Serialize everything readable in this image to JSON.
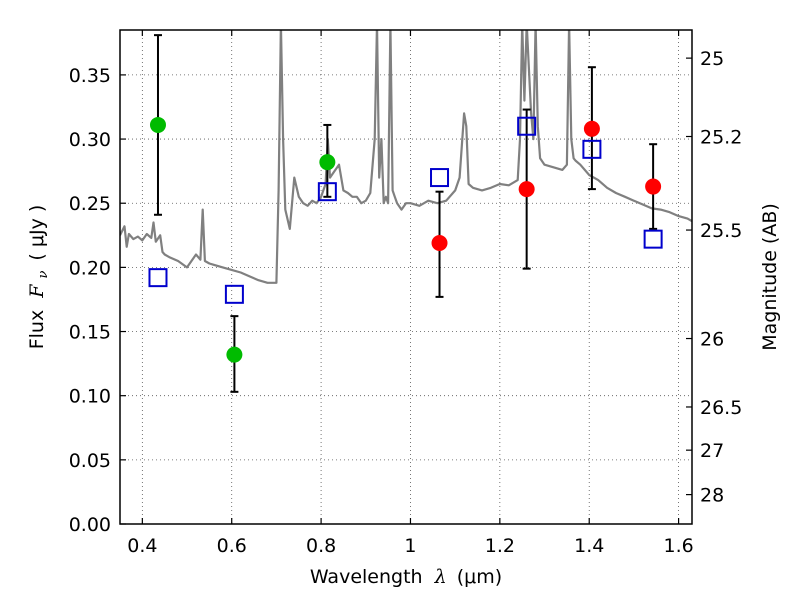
{
  "chart_data": {
    "type": "scatter",
    "title": "",
    "xlabel": {
      "text": "Wavelength",
      "symbol": "λ",
      "unit": "(μm)"
    },
    "ylabel": {
      "text": "Flux",
      "symbol": "F",
      "subscript": "ν",
      "unit": "( μJy )"
    },
    "ylabel_right": "Magnitude (AB)",
    "xlim": [
      0.35,
      1.63
    ],
    "ylim": [
      0.0,
      0.385
    ],
    "grid": true,
    "x_ticks": [
      {
        "value": 0.4,
        "label": "0.4"
      },
      {
        "value": 0.6,
        "label": "0.6"
      },
      {
        "value": 0.8,
        "label": "0.8"
      },
      {
        "value": 1.0,
        "label": "1"
      },
      {
        "value": 1.2,
        "label": "1.2"
      },
      {
        "value": 1.4,
        "label": "1.4"
      },
      {
        "value": 1.6,
        "label": "1.6"
      }
    ],
    "y_ticks": [
      {
        "value": 0.0,
        "label": "0.00"
      },
      {
        "value": 0.05,
        "label": "0.05"
      },
      {
        "value": 0.1,
        "label": "0.10"
      },
      {
        "value": 0.15,
        "label": "0.15"
      },
      {
        "value": 0.2,
        "label": "0.20"
      },
      {
        "value": 0.25,
        "label": "0.25"
      },
      {
        "value": 0.3,
        "label": "0.30"
      },
      {
        "value": 0.35,
        "label": "0.35"
      }
    ],
    "right_ticks": [
      {
        "value": 25.0,
        "label": "25"
      },
      {
        "value": 25.2,
        "label": "25.2"
      },
      {
        "value": 25.5,
        "label": "25.5"
      },
      {
        "value": 26.0,
        "label": "26"
      },
      {
        "value": 26.5,
        "label": "26.5"
      },
      {
        "value": 27.0,
        "label": "27"
      },
      {
        "value": 28.0,
        "label": "28"
      }
    ],
    "colors": {
      "spectrum": "#808080",
      "green": "#00bb00",
      "red": "#ff0000",
      "model": "#0000cc",
      "errorbar": "#000000"
    },
    "series": [
      {
        "kind": "points",
        "color": "green",
        "points": [
          {
            "x": 0.435,
            "y": 0.311,
            "yerr_low": 0.241,
            "yerr_high": 0.381
          },
          {
            "x": 0.606,
            "y": 0.132,
            "yerr_low": 0.103,
            "yerr_high": 0.162
          },
          {
            "x": 0.814,
            "y": 0.282,
            "yerr_low": 0.255,
            "yerr_high": 0.311
          }
        ]
      },
      {
        "kind": "points",
        "color": "red",
        "points": [
          {
            "x": 1.065,
            "y": 0.219,
            "yerr_low": 0.177,
            "yerr_high": 0.259
          },
          {
            "x": 1.26,
            "y": 0.261,
            "yerr_low": 0.199,
            "yerr_high": 0.323
          },
          {
            "x": 1.406,
            "y": 0.308,
            "yerr_low": 0.261,
            "yerr_high": 0.356
          },
          {
            "x": 1.543,
            "y": 0.263,
            "yerr_low": 0.23,
            "yerr_high": 0.296
          }
        ]
      },
      {
        "kind": "squares",
        "color": "model",
        "points": [
          {
            "x": 0.435,
            "y": 0.192
          },
          {
            "x": 0.606,
            "y": 0.179
          },
          {
            "x": 0.814,
            "y": 0.259
          },
          {
            "x": 1.065,
            "y": 0.27
          },
          {
            "x": 1.26,
            "y": 0.31
          },
          {
            "x": 1.406,
            "y": 0.292
          },
          {
            "x": 1.543,
            "y": 0.222
          }
        ]
      },
      {
        "kind": "spectrum",
        "color": "spectrum",
        "x": [
          0.35,
          0.36,
          0.365,
          0.37,
          0.38,
          0.39,
          0.4,
          0.41,
          0.42,
          0.425,
          0.43,
          0.44,
          0.445,
          0.45,
          0.46,
          0.48,
          0.5,
          0.52,
          0.53,
          0.535,
          0.54,
          0.55,
          0.56,
          0.58,
          0.6,
          0.62,
          0.64,
          0.66,
          0.68,
          0.7,
          0.705,
          0.71,
          0.715,
          0.72,
          0.73,
          0.74,
          0.75,
          0.76,
          0.77,
          0.78,
          0.79,
          0.8,
          0.81,
          0.815,
          0.82,
          0.83,
          0.84,
          0.85,
          0.86,
          0.87,
          0.88,
          0.89,
          0.9,
          0.91,
          0.92,
          0.925,
          0.93,
          0.935,
          0.94,
          0.945,
          0.95,
          0.955,
          0.96,
          0.965,
          0.97,
          0.98,
          0.99,
          1.0,
          1.02,
          1.04,
          1.06,
          1.08,
          1.1,
          1.11,
          1.12,
          1.125,
          1.13,
          1.14,
          1.16,
          1.18,
          1.2,
          1.22,
          1.24,
          1.245,
          1.25,
          1.255,
          1.26,
          1.27,
          1.275,
          1.28,
          1.285,
          1.29,
          1.3,
          1.32,
          1.34,
          1.35,
          1.355,
          1.36,
          1.365,
          1.37,
          1.38,
          1.4,
          1.42,
          1.44,
          1.46,
          1.48,
          1.5,
          1.52,
          1.54,
          1.56,
          1.58,
          1.6,
          1.62,
          1.63
        ],
        "y": [
          0.225,
          0.232,
          0.216,
          0.226,
          0.222,
          0.224,
          0.221,
          0.226,
          0.223,
          0.235,
          0.22,
          0.225,
          0.212,
          0.21,
          0.208,
          0.205,
          0.2,
          0.21,
          0.206,
          0.245,
          0.205,
          0.203,
          0.202,
          0.2,
          0.198,
          0.196,
          0.193,
          0.19,
          0.188,
          0.188,
          0.26,
          0.39,
          0.3,
          0.245,
          0.23,
          0.27,
          0.255,
          0.25,
          0.248,
          0.252,
          0.25,
          0.255,
          0.265,
          0.3,
          0.27,
          0.275,
          0.28,
          0.26,
          0.258,
          0.255,
          0.255,
          0.25,
          0.252,
          0.258,
          0.3,
          0.39,
          0.27,
          0.3,
          0.25,
          0.255,
          0.25,
          0.39,
          0.26,
          0.255,
          0.25,
          0.245,
          0.25,
          0.25,
          0.248,
          0.252,
          0.25,
          0.252,
          0.26,
          0.27,
          0.32,
          0.31,
          0.265,
          0.262,
          0.26,
          0.262,
          0.265,
          0.264,
          0.268,
          0.3,
          0.39,
          0.33,
          0.39,
          0.32,
          0.3,
          0.39,
          0.31,
          0.285,
          0.28,
          0.278,
          0.276,
          0.28,
          0.39,
          0.3,
          0.285,
          0.283,
          0.28,
          0.272,
          0.268,
          0.262,
          0.258,
          0.255,
          0.252,
          0.249,
          0.246,
          0.245,
          0.243,
          0.24,
          0.238,
          0.236
        ]
      }
    ]
  }
}
